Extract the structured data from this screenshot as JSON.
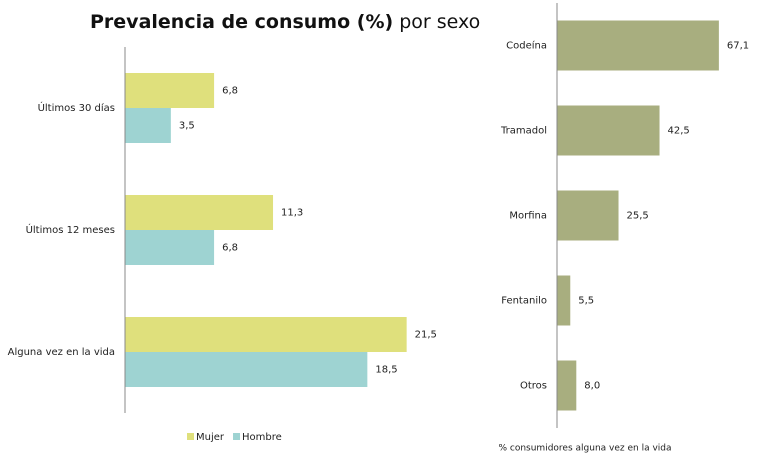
{
  "chart_data": [
    {
      "type": "hbar",
      "title": [
        "Prevalencia de consumo (%)",
        "por sexo"
      ],
      "categories": [
        "Últimos 30 días",
        "Últimos 12 meses",
        "Alguna vez en la vida"
      ],
      "series": [
        {
          "name": "Mujer",
          "color": "#dfe07c",
          "values": [
            6.8,
            11.3,
            21.5
          ],
          "value_labels": [
            "6,8",
            "11,3",
            "21,5"
          ]
        },
        {
          "name": "Hombre",
          "color": "#9ed3d2",
          "values": [
            3.5,
            6.8,
            18.5
          ],
          "value_labels": [
            "3,5",
            "6,8",
            "18,5"
          ]
        }
      ],
      "xlim": [
        0,
        25
      ],
      "legend": "bottom"
    },
    {
      "type": "hbar",
      "xlabel": "% consumidores alguna vez en la vida",
      "categories": [
        "Codeína",
        "Tramadol",
        "Morfina",
        "Fentanilo",
        "Otros"
      ],
      "values": [
        67.1,
        42.5,
        25.5,
        5.5,
        8.0
      ],
      "value_labels": [
        "67,1",
        "42,5",
        "25,5",
        "5,5",
        "8,0"
      ],
      "color": "#a8ae7f",
      "xlim": [
        0,
        80
      ]
    }
  ]
}
